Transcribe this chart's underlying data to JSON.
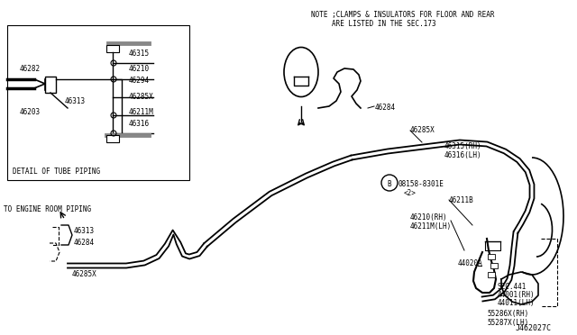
{
  "bg_color": "#ffffff",
  "line_color": "#000000",
  "fig_width": 6.4,
  "fig_height": 3.72,
  "dpi": 100,
  "note_text1": "NOTE ;CLAMPS & INSULATORS FOR FLOOR AND REAR",
  "note_text2": "ARE LISTED IN THE SEC.173",
  "part_id": "J462027C",
  "inset_title": "DETAIL OF TUBE PIPING"
}
